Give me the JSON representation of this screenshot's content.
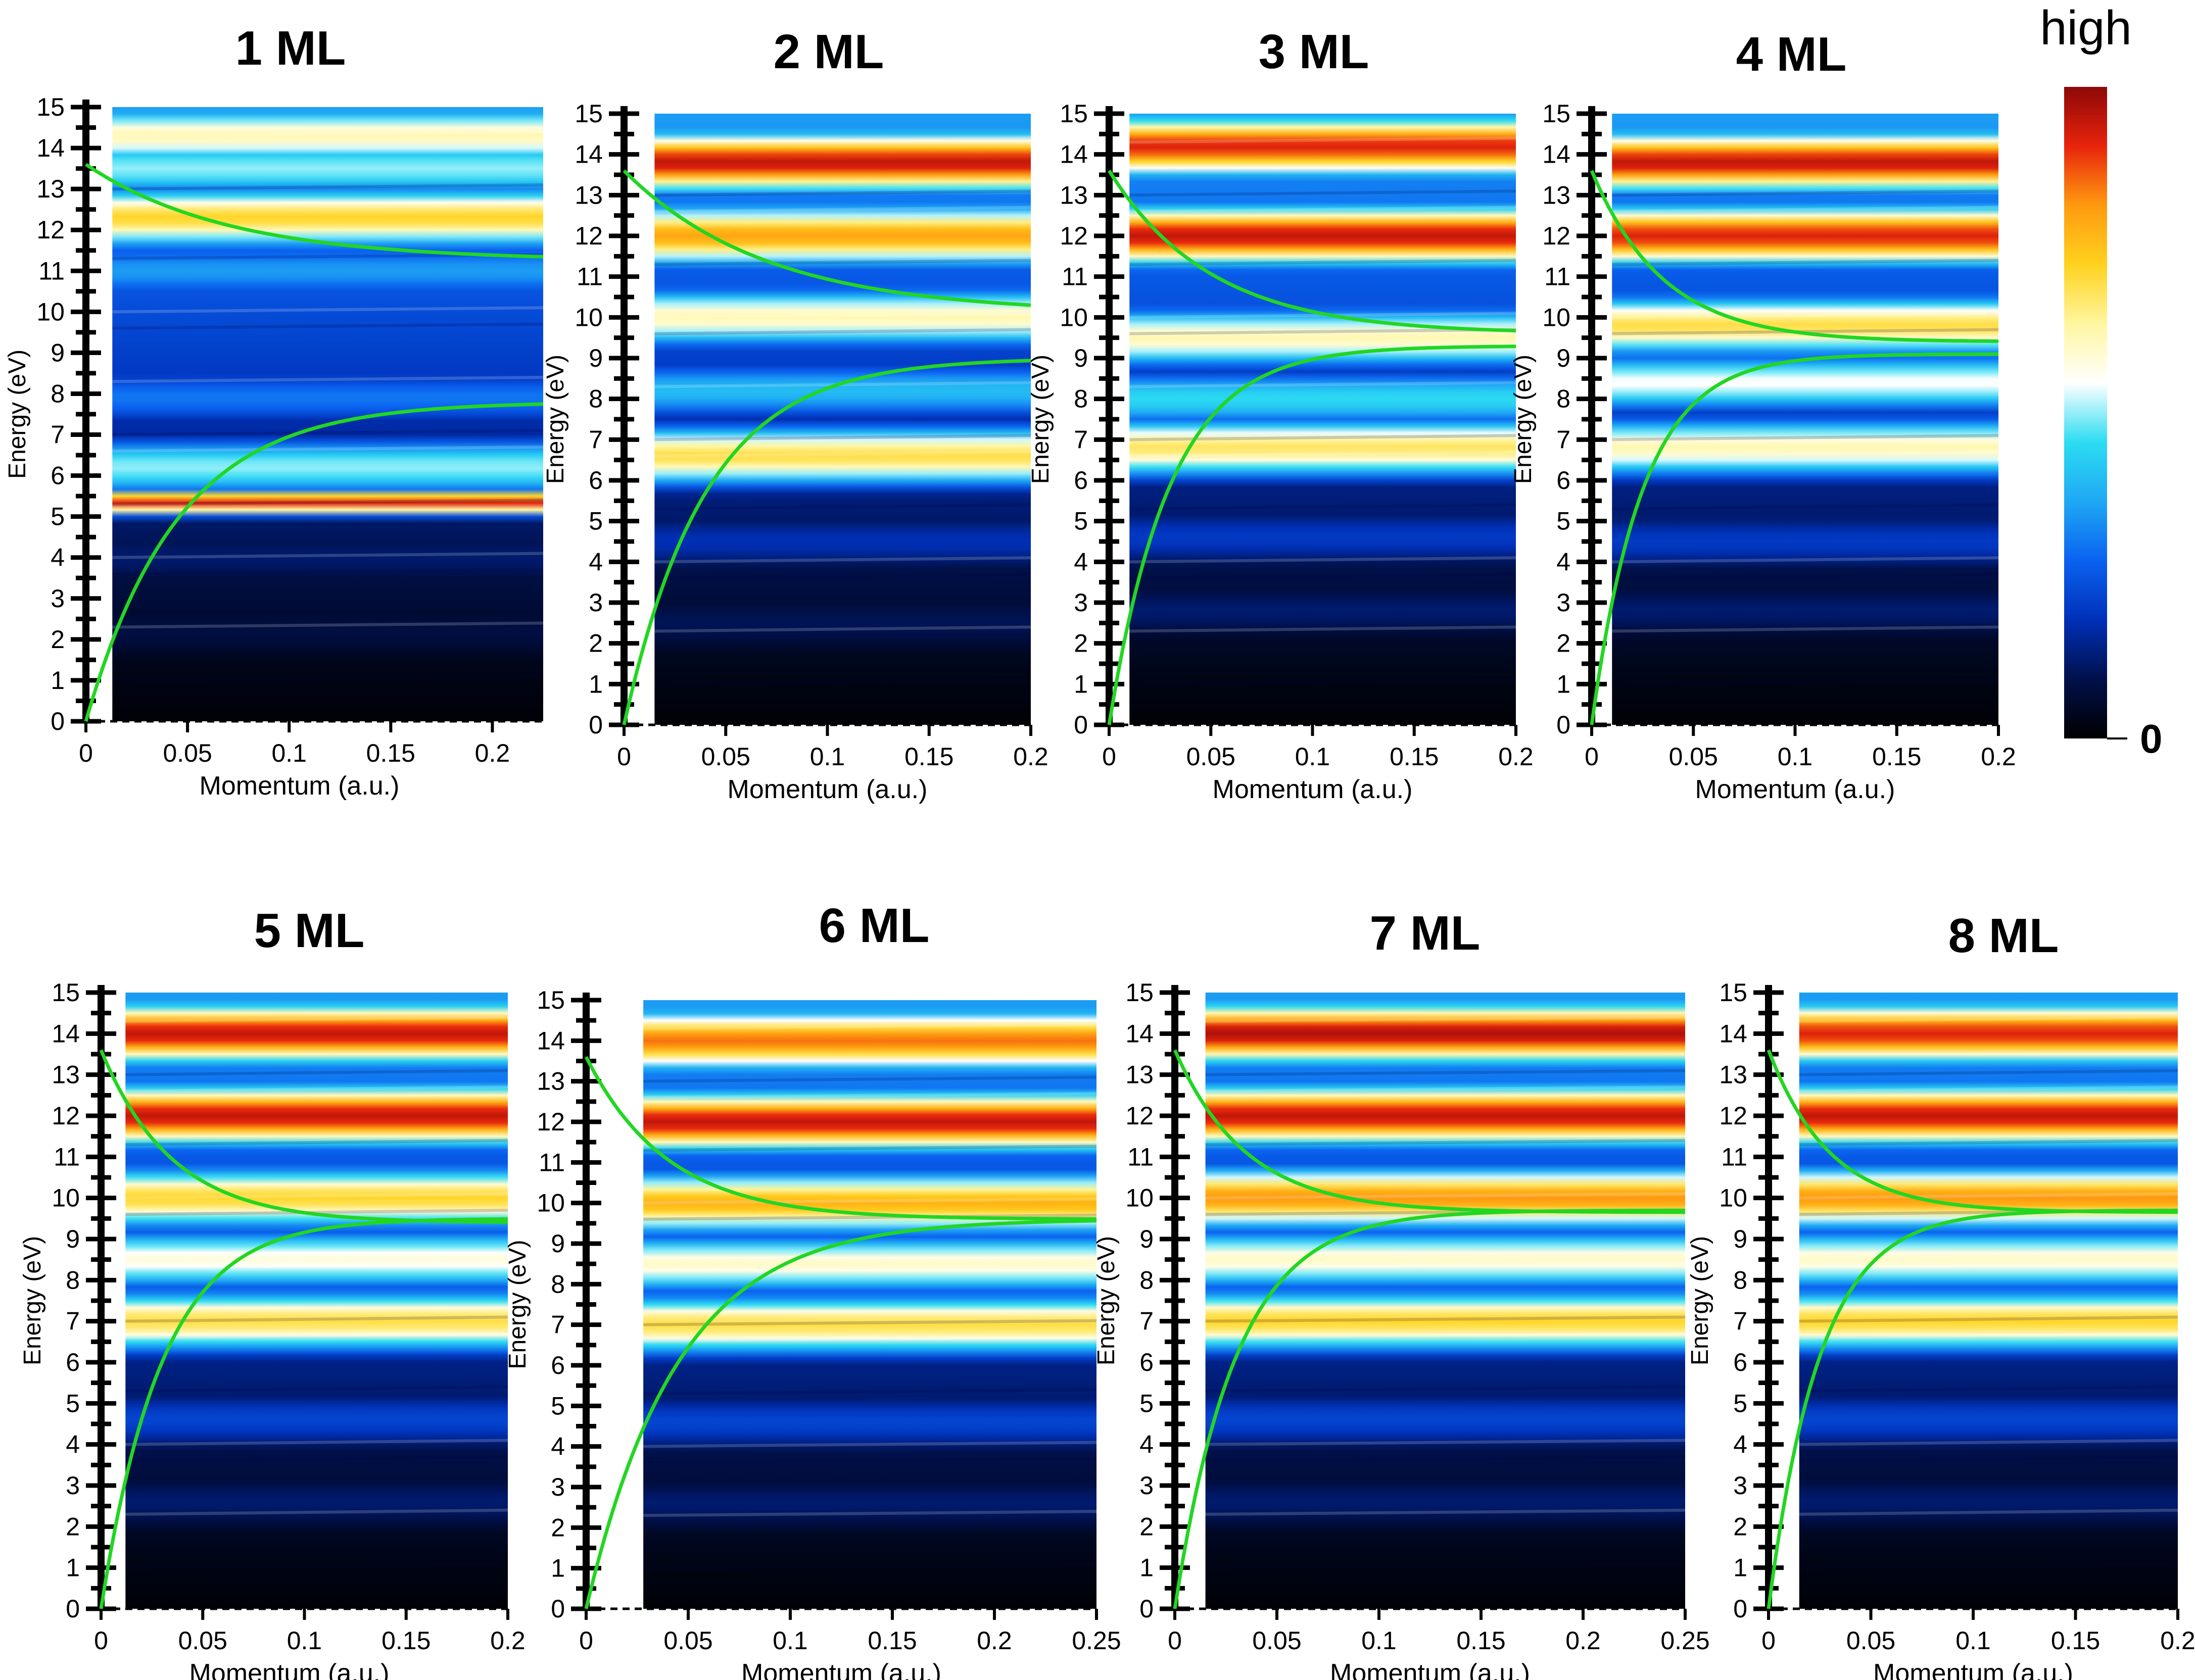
{
  "colors": {
    "fit_curve": "#22d622",
    "colormap": [
      "#000000",
      "#00104a",
      "#0030b8",
      "#0a62f0",
      "#1fa8f4",
      "#2cdcf2",
      "#ffffff",
      "#fff6a0",
      "#ffd21e",
      "#ff9a10",
      "#e8240c",
      "#8e0808"
    ]
  },
  "colorbar": {
    "label_high": "high",
    "label_zero": "0"
  },
  "chart_data": [
    {
      "type": "heatmap",
      "title": "1 ML",
      "xlabel": "Momentum (a.u.)",
      "ylabel": "Energy (eV)",
      "xlim": [
        0,
        0.225
      ],
      "ylim": [
        0,
        15
      ],
      "xticks": [
        0,
        0.05,
        0.1,
        0.15,
        0.2
      ],
      "xtick_labels": [
        "0",
        "0.05",
        "0.1",
        "0.15",
        "0.2"
      ],
      "yticks": [
        0,
        1,
        2,
        3,
        4,
        5,
        6,
        7,
        8,
        9,
        10,
        11,
        12,
        13,
        14,
        15
      ],
      "x_data_start": 0.013,
      "bands": [
        {
          "e": 0.8,
          "i": 0.02
        },
        {
          "e": 2.2,
          "i": 0.08
        },
        {
          "e": 4,
          "i": 0.12
        },
        {
          "e": 5.35,
          "i": 0.92,
          "w": 0.3,
          "slope": 6
        },
        {
          "e": 6.2,
          "i": 0.5
        },
        {
          "e": 7.9,
          "i": 0.3
        },
        {
          "e": 9.5,
          "i": 0.15
        },
        {
          "e": 11,
          "i": 0.35
        },
        {
          "e": 12.3,
          "i": 0.72
        },
        {
          "e": 13.5,
          "i": 0.5
        },
        {
          "e": 14.3,
          "i": 0.62
        }
      ],
      "upper_branch": {
        "e_at_0": 13.6,
        "e_inf": 11.25,
        "decay": 0.07
      },
      "lower_branch": {
        "e_inf": 7.8,
        "decay": 0.045
      }
    },
    {
      "type": "heatmap",
      "title": "2 ML",
      "xlabel": "Momentum (a.u.)",
      "ylabel": "Energy (eV)",
      "xlim": [
        0,
        0.2
      ],
      "ylim": [
        0,
        15
      ],
      "xticks": [
        0,
        0.05,
        0.1,
        0.15,
        0.2
      ],
      "xtick_labels": [
        "0",
        "0.05",
        "0.1",
        "0.15",
        "0.2"
      ],
      "yticks": [
        0,
        1,
        2,
        3,
        4,
        5,
        6,
        7,
        8,
        9,
        10,
        11,
        12,
        13,
        14,
        15
      ],
      "x_data_start": 0.015,
      "bands": [
        {
          "e": 0.8,
          "i": 0.02
        },
        {
          "e": 2.5,
          "i": 0.1
        },
        {
          "e": 4.5,
          "i": 0.18
        },
        {
          "e": 6.6,
          "i": 0.7
        },
        {
          "e": 8.2,
          "i": 0.4
        },
        {
          "e": 10,
          "i": 0.62
        },
        {
          "e": 12,
          "i": 0.8
        },
        {
          "e": 13.8,
          "i": 0.95
        }
      ],
      "upper_branch": {
        "e_at_0": 13.6,
        "e_inf": 10.1,
        "decay": 0.07
      },
      "lower_branch": {
        "e_inf": 9.0,
        "decay": 0.04
      }
    },
    {
      "type": "heatmap",
      "title": "3 ML",
      "xlabel": "Momentum (a.u.)",
      "ylabel": "Energy (eV)",
      "xlim": [
        0,
        0.2
      ],
      "ylim": [
        0,
        15
      ],
      "xticks": [
        0,
        0.05,
        0.1,
        0.15,
        0.2
      ],
      "xtick_labels": [
        "0",
        "0.05",
        "0.1",
        "0.15",
        "0.2"
      ],
      "yticks": [
        0,
        1,
        2,
        3,
        4,
        5,
        6,
        7,
        8,
        9,
        10,
        11,
        12,
        13,
        14,
        15
      ],
      "x_data_start": 0.01,
      "bands": [
        {
          "e": 0.8,
          "i": 0.02
        },
        {
          "e": 2.8,
          "i": 0.12
        },
        {
          "e": 4.6,
          "i": 0.2
        },
        {
          "e": 6.8,
          "i": 0.68
        },
        {
          "e": 8,
          "i": 0.45
        },
        {
          "e": 9.5,
          "i": 0.62
        },
        {
          "e": 12,
          "i": 0.95
        },
        {
          "e": 14.2,
          "i": 0.92
        }
      ],
      "upper_branch": {
        "e_at_0": 13.6,
        "e_inf": 9.6,
        "decay": 0.05
      },
      "lower_branch": {
        "e_inf": 9.3,
        "decay": 0.03
      }
    },
    {
      "type": "heatmap",
      "title": "4 ML",
      "xlabel": "Momentum (a.u.)",
      "ylabel": "Energy (eV)",
      "xlim": [
        0,
        0.2
      ],
      "ylim": [
        0,
        15
      ],
      "xticks": [
        0,
        0.05,
        0.1,
        0.15,
        0.2
      ],
      "xtick_labels": [
        "0",
        "0.05",
        "0.1",
        "0.15",
        "0.2"
      ],
      "yticks": [
        0,
        1,
        2,
        3,
        4,
        5,
        6,
        7,
        8,
        9,
        10,
        11,
        12,
        13,
        14,
        15
      ],
      "x_data_start": 0.01,
      "bands": [
        {
          "e": 0.8,
          "i": 0.02
        },
        {
          "e": 2.8,
          "i": 0.12
        },
        {
          "e": 4.5,
          "i": 0.2
        },
        {
          "e": 6.8,
          "i": 0.62
        },
        {
          "e": 8.4,
          "i": 0.55
        },
        {
          "e": 9.8,
          "i": 0.7
        },
        {
          "e": 12,
          "i": 0.92
        },
        {
          "e": 13.8,
          "i": 0.95
        }
      ],
      "upper_branch": {
        "e_at_0": 13.6,
        "e_inf": 9.4,
        "decay": 0.035
      },
      "lower_branch": {
        "e_inf": 9.1,
        "decay": 0.025
      }
    },
    {
      "type": "heatmap",
      "title": "5 ML",
      "xlabel": "Momentum (a.u.)",
      "ylabel": "Energy (eV)",
      "xlim": [
        0,
        0.2
      ],
      "ylim": [
        0,
        15
      ],
      "xticks": [
        0,
        0.05,
        0.1,
        0.15,
        0.2
      ],
      "xtick_labels": [
        "0",
        "0.05",
        "0.1",
        "0.15",
        "0.2"
      ],
      "yticks": [
        0,
        1,
        2,
        3,
        4,
        5,
        6,
        7,
        8,
        9,
        10,
        11,
        12,
        13,
        14,
        15
      ],
      "x_data_start": 0.012,
      "bands": [
        {
          "e": 0.8,
          "i": 0.02
        },
        {
          "e": 2.6,
          "i": 0.12
        },
        {
          "e": 4.6,
          "i": 0.22
        },
        {
          "e": 7,
          "i": 0.7
        },
        {
          "e": 8.5,
          "i": 0.58
        },
        {
          "e": 10,
          "i": 0.72
        },
        {
          "e": 12,
          "i": 0.95
        },
        {
          "e": 14,
          "i": 0.95
        }
      ],
      "upper_branch": {
        "e_at_0": 13.6,
        "e_inf": 9.4,
        "decay": 0.035
      },
      "lower_branch": {
        "e_inf": 9.5,
        "decay": 0.03
      }
    },
    {
      "type": "heatmap",
      "title": "6 ML",
      "xlabel": "Momentum (a.u.)",
      "ylabel": "Energy (eV)",
      "xlim": [
        0,
        0.25
      ],
      "ylim": [
        0,
        15
      ],
      "xticks": [
        0,
        0.05,
        0.1,
        0.15,
        0.2,
        0.25
      ],
      "xtick_labels": [
        "0",
        "0.05",
        "0.1",
        "0.15",
        "0.2",
        "0.25"
      ],
      "yticks": [
        0,
        1,
        2,
        3,
        4,
        5,
        6,
        7,
        8,
        9,
        10,
        11,
        12,
        13,
        14,
        15
      ],
      "x_data_start": 0.028,
      "bands": [
        {
          "e": 0.8,
          "i": 0.02
        },
        {
          "e": 2.6,
          "i": 0.12
        },
        {
          "e": 4.6,
          "i": 0.22
        },
        {
          "e": 7,
          "i": 0.7
        },
        {
          "e": 8.5,
          "i": 0.6
        },
        {
          "e": 10,
          "i": 0.78
        },
        {
          "e": 12,
          "i": 0.95
        },
        {
          "e": 14,
          "i": 0.85
        }
      ],
      "upper_branch": {
        "e_at_0": 13.6,
        "e_inf": 9.6,
        "decay": 0.04
      },
      "lower_branch": {
        "e_inf": 9.6,
        "decay": 0.045
      }
    },
    {
      "type": "heatmap",
      "title": "7 ML",
      "xlabel": "Momentum (a.u.)",
      "ylabel": "Energy (eV)",
      "xlim": [
        0,
        0.25
      ],
      "ylim": [
        0,
        15
      ],
      "xticks": [
        0,
        0.05,
        0.1,
        0.15,
        0.2,
        0.25
      ],
      "xtick_labels": [
        "0",
        "0.05",
        "0.1",
        "0.15",
        "0.2",
        "0.25"
      ],
      "yticks": [
        0,
        1,
        2,
        3,
        4,
        5,
        6,
        7,
        8,
        9,
        10,
        11,
        12,
        13,
        14,
        15
      ],
      "x_data_start": 0.015,
      "bands": [
        {
          "e": 0.8,
          "i": 0.02
        },
        {
          "e": 2.6,
          "i": 0.12
        },
        {
          "e": 4.6,
          "i": 0.22
        },
        {
          "e": 7,
          "i": 0.72
        },
        {
          "e": 8.5,
          "i": 0.6
        },
        {
          "e": 10,
          "i": 0.82
        },
        {
          "e": 12,
          "i": 0.95
        },
        {
          "e": 14,
          "i": 0.97
        }
      ],
      "upper_branch": {
        "e_at_0": 13.6,
        "e_inf": 9.65,
        "decay": 0.035
      },
      "lower_branch": {
        "e_inf": 9.7,
        "decay": 0.03
      }
    },
    {
      "type": "heatmap",
      "title": "8 ML",
      "xlabel": "Momentum (a.u.)",
      "ylabel": "Energy (eV)",
      "xlim": [
        0,
        0.2
      ],
      "ylim": [
        0,
        15
      ],
      "xticks": [
        0,
        0.05,
        0.1,
        0.15,
        0.2
      ],
      "xtick_labels": [
        "0",
        "0.05",
        "0.1",
        "0.15",
        "0.2"
      ],
      "yticks": [
        0,
        1,
        2,
        3,
        4,
        5,
        6,
        7,
        8,
        9,
        10,
        11,
        12,
        13,
        14,
        15
      ],
      "x_data_start": 0.015,
      "bands": [
        {
          "e": 0.8,
          "i": 0.02
        },
        {
          "e": 2.6,
          "i": 0.12
        },
        {
          "e": 4.6,
          "i": 0.22
        },
        {
          "e": 7,
          "i": 0.72
        },
        {
          "e": 8.5,
          "i": 0.6
        },
        {
          "e": 10,
          "i": 0.82
        },
        {
          "e": 12,
          "i": 0.95
        },
        {
          "e": 14,
          "i": 0.92
        }
      ],
      "upper_branch": {
        "e_at_0": 13.6,
        "e_inf": 9.65,
        "decay": 0.03
      },
      "lower_branch": {
        "e_inf": 9.7,
        "decay": 0.025
      }
    }
  ]
}
